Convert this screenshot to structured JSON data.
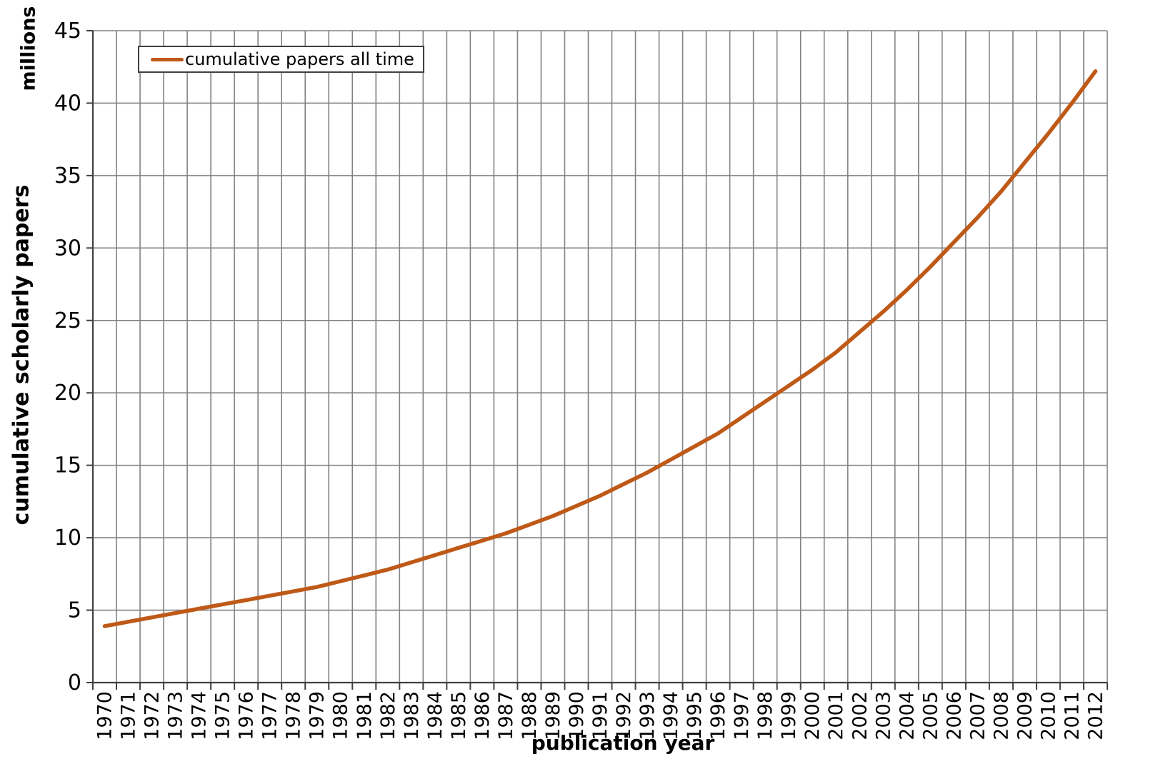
{
  "chart_data": {
    "type": "line",
    "x": [
      1970,
      1971,
      1972,
      1973,
      1974,
      1975,
      1976,
      1977,
      1978,
      1979,
      1980,
      1981,
      1982,
      1983,
      1984,
      1985,
      1986,
      1987,
      1988,
      1989,
      1990,
      1991,
      1992,
      1993,
      1994,
      1995,
      1996,
      1997,
      1998,
      1999,
      2000,
      2001,
      2002,
      2003,
      2004,
      2005,
      2006,
      2007,
      2008,
      2009,
      2010,
      2011,
      2012
    ],
    "series": [
      {
        "name": "cumulative papers all time",
        "color": "#BF5917",
        "values": [
          3.9,
          4.2,
          4.5,
          4.8,
          5.1,
          5.4,
          5.7,
          6.0,
          6.3,
          6.6,
          7.0,
          7.4,
          7.8,
          8.3,
          8.8,
          9.3,
          9.8,
          10.3,
          10.9,
          11.5,
          12.2,
          12.9,
          13.7,
          14.5,
          15.4,
          16.3,
          17.2,
          18.3,
          19.4,
          20.5,
          21.6,
          22.8,
          24.2,
          25.6,
          27.1,
          28.7,
          30.4,
          32.1,
          33.9,
          35.9,
          37.9,
          40.0,
          42.2
        ]
      }
    ],
    "title": "",
    "xlabel": "publication year",
    "ylabel": "cumulative scholarly papers",
    "y_unit_label": "millions",
    "legend_label": "cumulative papers all time",
    "ylim": [
      0,
      45
    ],
    "yticks": [
      0,
      5,
      10,
      15,
      20,
      25,
      30,
      35,
      40,
      45
    ],
    "grid": "both",
    "legend_position": "top-left",
    "colors": {
      "line": "#BF5917",
      "grid": "#828282",
      "axis": "#404040",
      "text": "#000000",
      "background": "#ffffff"
    }
  }
}
